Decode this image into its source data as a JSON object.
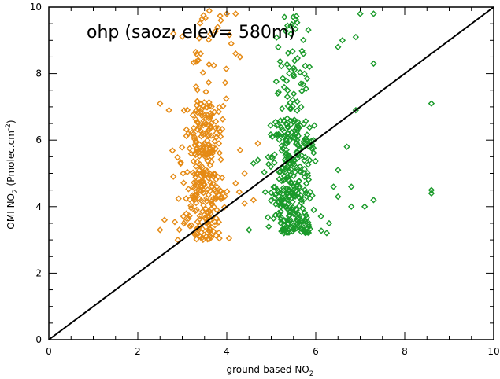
{
  "chart_data": {
    "type": "scatter",
    "title": "ohp (saoz; elev= 580m)",
    "xlabel": {
      "main": "ground-based NO",
      "sub": "2"
    },
    "ylabel": {
      "main": "OMI NO",
      "sub": "2",
      "rest": " (Pmolec.cm",
      "sup": "-2",
      "end": ")"
    },
    "xlim": [
      0,
      10
    ],
    "ylim": [
      0,
      10
    ],
    "xticks": [
      "0",
      "2",
      "4",
      "6",
      "8",
      "10"
    ],
    "yticks": [
      "0",
      "2",
      "4",
      "6",
      "8",
      "10"
    ],
    "grid": false,
    "reference_line": {
      "from": [
        0,
        0
      ],
      "to": [
        10,
        10
      ],
      "color": "#000000"
    },
    "series": [
      {
        "color": "#e58a14",
        "marker": "diamond",
        "clusters": [
          {
            "x_min": 2.9,
            "x_max": 4.1,
            "y_min": 3.0,
            "y_max": 7.0,
            "n": 240
          },
          {
            "x_min": 2.5,
            "x_max": 4.4,
            "y_min": 3.1,
            "y_max": 6.2,
            "n": 50
          },
          {
            "x_min": 2.9,
            "x_max": 4.2,
            "y_min": 7.0,
            "y_max": 9.9,
            "n": 40
          }
        ],
        "points": [
          [
            2.5,
            3.3
          ],
          [
            2.5,
            7.1
          ],
          [
            2.6,
            3.6
          ],
          [
            2.7,
            6.9
          ],
          [
            2.8,
            4.9
          ],
          [
            2.8,
            9.2
          ],
          [
            2.9,
            3.0
          ],
          [
            4.0,
            9.8
          ],
          [
            4.2,
            9.8
          ],
          [
            4.1,
            8.9
          ],
          [
            4.2,
            8.6
          ],
          [
            4.3,
            8.5
          ],
          [
            4.3,
            5.7
          ],
          [
            4.4,
            5.0
          ],
          [
            4.4,
            4.1
          ],
          [
            4.2,
            4.7
          ],
          [
            4.7,
            5.9
          ],
          [
            4.6,
            4.2
          ]
        ]
      },
      {
        "color": "#1a9a2a",
        "marker": "diamond",
        "clusters": [
          {
            "x_min": 4.7,
            "x_max": 6.2,
            "y_min": 3.2,
            "y_max": 6.6,
            "n": 270
          },
          {
            "x_min": 4.8,
            "x_max": 6.0,
            "y_min": 6.6,
            "y_max": 9.8,
            "n": 60
          },
          {
            "x_min": 4.5,
            "x_max": 6.4,
            "y_min": 3.2,
            "y_max": 4.6,
            "n": 40
          }
        ],
        "points": [
          [
            4.5,
            3.3
          ],
          [
            4.7,
            5.4
          ],
          [
            4.6,
            5.3
          ],
          [
            6.3,
            3.5
          ],
          [
            6.4,
            4.6
          ],
          [
            6.5,
            5.1
          ],
          [
            6.8,
            4.0
          ],
          [
            6.8,
            4.6
          ],
          [
            6.9,
            6.9
          ],
          [
            7.3,
            4.2
          ],
          [
            7.3,
            8.3
          ],
          [
            7.3,
            9.8
          ],
          [
            7.0,
            9.8
          ],
          [
            6.5,
            8.8
          ],
          [
            6.6,
            9.0
          ],
          [
            8.6,
            7.1
          ],
          [
            8.6,
            4.5
          ],
          [
            8.6,
            4.4
          ],
          [
            6.7,
            5.8
          ],
          [
            6.5,
            4.3
          ],
          [
            7.1,
            4.0
          ],
          [
            6.9,
            9.1
          ]
        ]
      }
    ]
  }
}
